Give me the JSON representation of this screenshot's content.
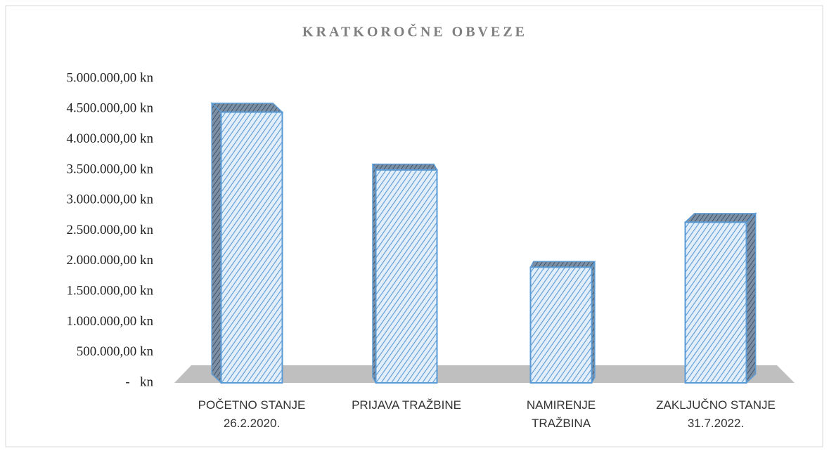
{
  "chart_data": {
    "type": "bar3d",
    "title": "KRATKOROČNE OBVEZE",
    "categories": [
      "POČETNO STANJE\n26.2.2020.",
      "PRIJAVA TRAŽBINE",
      "NAMIRENJE\nTRAŽBINA",
      "ZAKLJUČNO STANJE\n31.7.2022."
    ],
    "values": [
      4450000,
      3500000,
      1900000,
      2640000
    ],
    "color": "#5b9bd5",
    "ylim": [
      0,
      5000000
    ],
    "yticks": [
      {
        "value": 0,
        "label": "-   kn"
      },
      {
        "value": 500000,
        "label": "500.000,00 kn"
      },
      {
        "value": 1000000,
        "label": "1.000.000,00 kn"
      },
      {
        "value": 1500000,
        "label": "1.500.000,00 kn"
      },
      {
        "value": 2000000,
        "label": "2.000.000,00 kn"
      },
      {
        "value": 2500000,
        "label": "2.500.000,00 kn"
      },
      {
        "value": 3000000,
        "label": "3.000.000,00 kn"
      },
      {
        "value": 3500000,
        "label": "3.500.000,00 kn"
      },
      {
        "value": 4000000,
        "label": "4.000.000,00 kn"
      },
      {
        "value": 4500000,
        "label": "4.500.000,00 kn"
      },
      {
        "value": 5000000,
        "label": "5.000.000,00 kn"
      }
    ],
    "grid": false
  }
}
